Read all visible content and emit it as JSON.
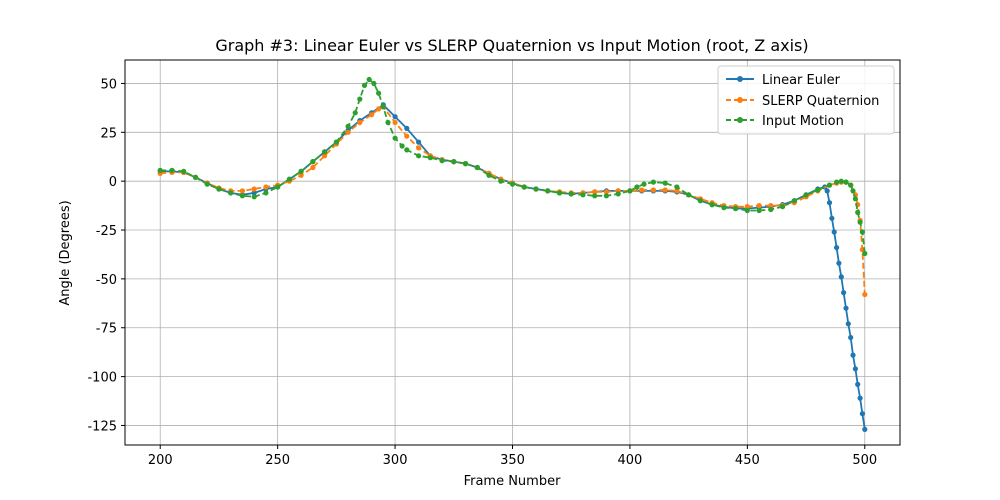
{
  "chart_data": {
    "type": "line",
    "title": "Graph #3: Linear Euler vs SLERP Quaternion vs Input Motion (root, Z axis)",
    "xlabel": "Frame Number",
    "ylabel": "Angle (Degrees)",
    "xlim": [
      185,
      515
    ],
    "ylim": [
      -135,
      62
    ],
    "xticks": [
      200,
      250,
      300,
      350,
      400,
      450,
      500
    ],
    "yticks": [
      50,
      25,
      0,
      -25,
      -50,
      -75,
      -100,
      -125
    ],
    "grid": true,
    "legend_position": "top-right",
    "series": [
      {
        "name": "Linear Euler",
        "color": "#1f77b4",
        "line_style": "solid",
        "marker": "circle",
        "points": [
          [
            200,
            5
          ],
          [
            205,
            5
          ],
          [
            210,
            4.5
          ],
          [
            215,
            2
          ],
          [
            220,
            -1
          ],
          [
            225,
            -4
          ],
          [
            230,
            -6
          ],
          [
            235,
            -7
          ],
          [
            240,
            -6
          ],
          [
            245,
            -4
          ],
          [
            250,
            -3
          ],
          [
            255,
            1
          ],
          [
            260,
            5
          ],
          [
            265,
            10
          ],
          [
            270,
            15
          ],
          [
            275,
            20
          ],
          [
            280,
            26
          ],
          [
            285,
            31
          ],
          [
            290,
            35
          ],
          [
            295,
            39
          ],
          [
            300,
            33
          ],
          [
            305,
            27
          ],
          [
            310,
            20
          ],
          [
            315,
            13
          ],
          [
            320,
            11
          ],
          [
            325,
            10
          ],
          [
            330,
            9
          ],
          [
            335,
            7
          ],
          [
            340,
            4
          ],
          [
            345,
            1
          ],
          [
            350,
            -1
          ],
          [
            355,
            -3
          ],
          [
            360,
            -4
          ],
          [
            365,
            -5
          ],
          [
            370,
            -6
          ],
          [
            375,
            -6.5
          ],
          [
            380,
            -6
          ],
          [
            385,
            -5.5
          ],
          [
            390,
            -5
          ],
          [
            395,
            -5
          ],
          [
            400,
            -5
          ],
          [
            405,
            -5
          ],
          [
            410,
            -5
          ],
          [
            415,
            -5
          ],
          [
            420,
            -5.5
          ],
          [
            425,
            -7
          ],
          [
            430,
            -10
          ],
          [
            435,
            -12
          ],
          [
            440,
            -13
          ],
          [
            445,
            -14
          ],
          [
            450,
            -14
          ],
          [
            455,
            -13.5
          ],
          [
            460,
            -13
          ],
          [
            465,
            -12
          ],
          [
            470,
            -10
          ],
          [
            475,
            -7
          ],
          [
            480,
            -4
          ],
          [
            483,
            -3
          ],
          [
            484,
            -5
          ],
          [
            485,
            -11
          ],
          [
            486,
            -19
          ],
          [
            487,
            -26
          ],
          [
            488,
            -34
          ],
          [
            489,
            -42
          ],
          [
            490,
            -49
          ],
          [
            491,
            -57
          ],
          [
            492,
            -65
          ],
          [
            493,
            -73
          ],
          [
            494,
            -80
          ],
          [
            495,
            -89
          ],
          [
            496,
            -96
          ],
          [
            497,
            -104
          ],
          [
            498,
            -111
          ],
          [
            499,
            -119
          ],
          [
            500,
            -127
          ]
        ]
      },
      {
        "name": "SLERP Quaternion",
        "color": "#ff7f0e",
        "line_style": "dashed",
        "marker": "circle",
        "points": [
          [
            200,
            4
          ],
          [
            205,
            4.5
          ],
          [
            210,
            4.5
          ],
          [
            215,
            2
          ],
          [
            220,
            -1
          ],
          [
            225,
            -3.5
          ],
          [
            230,
            -5
          ],
          [
            235,
            -5
          ],
          [
            240,
            -4
          ],
          [
            245,
            -3
          ],
          [
            250,
            -2
          ],
          [
            255,
            0
          ],
          [
            260,
            3
          ],
          [
            265,
            7
          ],
          [
            270,
            13
          ],
          [
            275,
            19
          ],
          [
            280,
            25
          ],
          [
            285,
            30
          ],
          [
            290,
            34
          ],
          [
            293,
            37
          ],
          [
            295,
            38
          ],
          [
            300,
            30
          ],
          [
            305,
            23
          ],
          [
            310,
            17
          ],
          [
            315,
            13
          ],
          [
            320,
            11
          ],
          [
            325,
            10
          ],
          [
            330,
            9
          ],
          [
            335,
            7
          ],
          [
            340,
            4
          ],
          [
            345,
            1
          ],
          [
            350,
            -1
          ],
          [
            355,
            -3
          ],
          [
            360,
            -4
          ],
          [
            365,
            -5
          ],
          [
            370,
            -5.5
          ],
          [
            375,
            -6
          ],
          [
            380,
            -6
          ],
          [
            385,
            -5.5
          ],
          [
            390,
            -5.5
          ],
          [
            395,
            -5
          ],
          [
            400,
            -5
          ],
          [
            405,
            -4.5
          ],
          [
            410,
            -4.5
          ],
          [
            415,
            -4.5
          ],
          [
            420,
            -5
          ],
          [
            425,
            -7
          ],
          [
            430,
            -9
          ],
          [
            435,
            -11
          ],
          [
            440,
            -12.5
          ],
          [
            445,
            -13
          ],
          [
            450,
            -13
          ],
          [
            455,
            -12.5
          ],
          [
            460,
            -12.5
          ],
          [
            465,
            -12.5
          ],
          [
            470,
            -11
          ],
          [
            475,
            -8
          ],
          [
            480,
            -5
          ],
          [
            485,
            -2
          ],
          [
            488,
            -1
          ],
          [
            490,
            -0.5
          ],
          [
            492,
            -0.5
          ],
          [
            494,
            -2
          ],
          [
            496,
            -7
          ],
          [
            497,
            -12
          ],
          [
            498,
            -20
          ],
          [
            499,
            -35
          ],
          [
            500,
            -58
          ]
        ]
      },
      {
        "name": "Input Motion",
        "color": "#2ca02c",
        "line_style": "dashed",
        "marker": "circle",
        "points": [
          [
            200,
            5.5
          ],
          [
            205,
            5.5
          ],
          [
            210,
            5
          ],
          [
            215,
            2
          ],
          [
            220,
            -1.5
          ],
          [
            225,
            -4
          ],
          [
            230,
            -6
          ],
          [
            235,
            -7.5
          ],
          [
            240,
            -8
          ],
          [
            245,
            -6
          ],
          [
            250,
            -3
          ],
          [
            255,
            1
          ],
          [
            260,
            5
          ],
          [
            265,
            10
          ],
          [
            270,
            15
          ],
          [
            275,
            20
          ],
          [
            280,
            28
          ],
          [
            283,
            35
          ],
          [
            285,
            42
          ],
          [
            287,
            49
          ],
          [
            289,
            52
          ],
          [
            291,
            50
          ],
          [
            293,
            45
          ],
          [
            295,
            38
          ],
          [
            297,
            30
          ],
          [
            300,
            22
          ],
          [
            303,
            18
          ],
          [
            305,
            16
          ],
          [
            310,
            13
          ],
          [
            315,
            12
          ],
          [
            320,
            10.5
          ],
          [
            325,
            10
          ],
          [
            330,
            9
          ],
          [
            335,
            7
          ],
          [
            340,
            3
          ],
          [
            345,
            0
          ],
          [
            350,
            -1.5
          ],
          [
            355,
            -3
          ],
          [
            360,
            -4
          ],
          [
            365,
            -5
          ],
          [
            370,
            -6
          ],
          [
            375,
            -6.5
          ],
          [
            380,
            -7
          ],
          [
            385,
            -7.5
          ],
          [
            390,
            -7.5
          ],
          [
            395,
            -6.5
          ],
          [
            400,
            -5
          ],
          [
            403,
            -3
          ],
          [
            406,
            -1.5
          ],
          [
            410,
            -0.5
          ],
          [
            415,
            -1
          ],
          [
            420,
            -3
          ],
          [
            425,
            -7
          ],
          [
            430,
            -10
          ],
          [
            435,
            -12
          ],
          [
            440,
            -13.5
          ],
          [
            445,
            -14
          ],
          [
            450,
            -15
          ],
          [
            455,
            -15
          ],
          [
            460,
            -14.5
          ],
          [
            465,
            -13
          ],
          [
            470,
            -10
          ],
          [
            475,
            -7
          ],
          [
            480,
            -4.5
          ],
          [
            485,
            -2
          ],
          [
            488,
            -0.5
          ],
          [
            490,
            0
          ],
          [
            492,
            -0.5
          ],
          [
            494,
            -2
          ],
          [
            495,
            -5
          ],
          [
            496,
            -9
          ],
          [
            497,
            -16
          ],
          [
            498,
            -21
          ],
          [
            499,
            -26
          ],
          [
            500,
            -37
          ]
        ]
      }
    ]
  }
}
